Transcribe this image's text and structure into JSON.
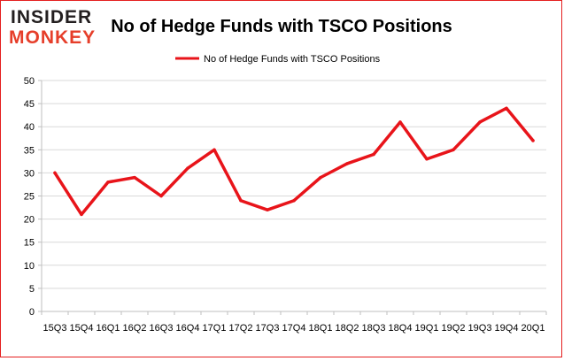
{
  "logo": {
    "line1": "INSIDER",
    "line2": "MONKEY"
  },
  "chart_data": {
    "type": "line",
    "title": "No of Hedge Funds with TSCO Positions",
    "xlabel": "",
    "ylabel": "",
    "categories": [
      "15Q3",
      "15Q4",
      "16Q1",
      "16Q2",
      "16Q3",
      "16Q4",
      "17Q1",
      "17Q2",
      "17Q3",
      "17Q4",
      "18Q1",
      "18Q2",
      "18Q3",
      "18Q4",
      "19Q1",
      "19Q2",
      "19Q3",
      "19Q4",
      "20Q1"
    ],
    "series": [
      {
        "name": "No of Hedge Funds with TSCO Positions",
        "values": [
          30,
          21,
          28,
          29,
          25,
          31,
          35,
          24,
          22,
          24,
          29,
          32,
          34,
          41,
          33,
          35,
          41,
          44,
          37
        ]
      }
    ],
    "ylim": [
      0,
      50
    ],
    "yticks": [
      0,
      5,
      10,
      15,
      20,
      25,
      30,
      35,
      40,
      45,
      50
    ],
    "grid": true,
    "legend_position": "top-center",
    "colors": {
      "line": "#e8141a",
      "grid": "#d9d9d9",
      "frame": "#e41f1f"
    }
  }
}
